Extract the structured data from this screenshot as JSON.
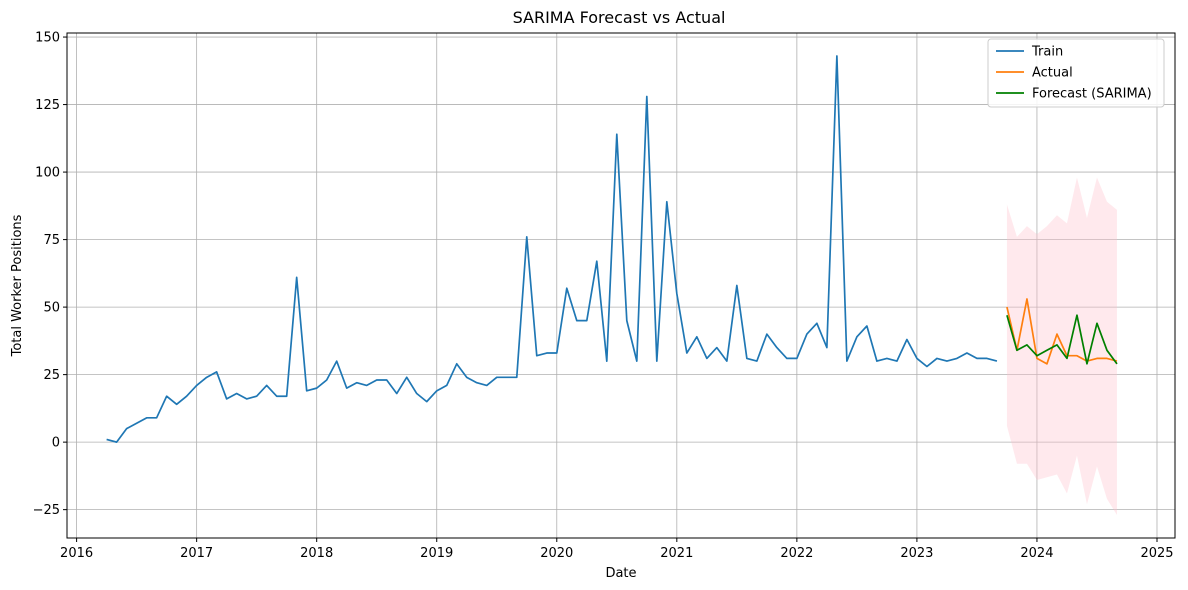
{
  "chart_data": {
    "type": "line",
    "title": "SARIMA Forecast vs Actual",
    "xlabel": "Date",
    "ylabel": "Total Worker Positions",
    "xlim": [
      2015.92,
      2025.15
    ],
    "ylim": [
      -35.5,
      151.5
    ],
    "x_ticks": [
      2016,
      2017,
      2018,
      2019,
      2020,
      2021,
      2022,
      2023,
      2024,
      2025
    ],
    "y_ticks": [
      -25,
      0,
      25,
      50,
      75,
      100,
      125,
      150
    ],
    "grid": true,
    "legend_position": "top-right",
    "colors": {
      "train": "#1f77b4",
      "actual": "#ff7f0e",
      "forecast": "#008000",
      "confidence_band": "#ffc0cb"
    },
    "series": [
      {
        "name": "Train",
        "x": [
          "2016-04",
          "2016-05",
          "2016-06",
          "2016-07",
          "2016-08",
          "2016-09",
          "2016-10",
          "2016-11",
          "2016-12",
          "2017-01",
          "2017-02",
          "2017-03",
          "2017-04",
          "2017-05",
          "2017-06",
          "2017-07",
          "2017-08",
          "2017-09",
          "2017-10",
          "2017-11",
          "2017-12",
          "2018-01",
          "2018-02",
          "2018-03",
          "2018-04",
          "2018-05",
          "2018-06",
          "2018-07",
          "2018-08",
          "2018-09",
          "2018-10",
          "2018-11",
          "2018-12",
          "2019-01",
          "2019-02",
          "2019-03",
          "2019-04",
          "2019-05",
          "2019-06",
          "2019-07",
          "2019-08",
          "2019-09",
          "2019-10",
          "2019-11",
          "2019-12",
          "2020-01",
          "2020-02",
          "2020-03",
          "2020-04",
          "2020-05",
          "2020-06",
          "2020-07",
          "2020-08",
          "2020-09",
          "2020-10",
          "2020-11",
          "2020-12",
          "2021-01",
          "2021-02",
          "2021-03",
          "2021-04",
          "2021-05",
          "2021-06",
          "2021-07",
          "2021-08",
          "2021-09",
          "2021-10",
          "2021-11",
          "2021-12",
          "2022-01",
          "2022-02",
          "2022-03",
          "2022-04",
          "2022-05",
          "2022-06",
          "2022-07",
          "2022-08",
          "2022-09",
          "2022-10",
          "2022-11",
          "2022-12",
          "2023-01",
          "2023-02",
          "2023-03",
          "2023-04",
          "2023-05",
          "2023-06",
          "2023-07",
          "2023-08",
          "2023-09"
        ],
        "values": [
          1,
          0,
          5,
          7,
          9,
          9,
          17,
          14,
          17,
          21,
          24,
          26,
          16,
          18,
          16,
          17,
          21,
          17,
          17,
          61,
          19,
          20,
          23,
          30,
          20,
          22,
          21,
          23,
          23,
          18,
          24,
          18,
          15,
          19,
          21,
          29,
          24,
          22,
          21,
          24,
          24,
          24,
          76,
          32,
          33,
          33,
          57,
          45,
          45,
          67,
          30,
          114,
          45,
          30,
          128,
          30,
          89,
          55,
          33,
          39,
          31,
          35,
          30,
          58,
          31,
          30,
          40,
          35,
          31,
          31,
          40,
          44,
          35,
          143,
          30,
          39,
          43,
          30,
          31,
          30,
          38,
          31,
          28,
          31,
          30,
          31,
          33,
          31,
          31,
          30
        ]
      },
      {
        "name": "Actual",
        "x": [
          "2023-10",
          "2023-11",
          "2023-12",
          "2024-01",
          "2024-02",
          "2024-03",
          "2024-04",
          "2024-05",
          "2024-06",
          "2024-07",
          "2024-08",
          "2024-09"
        ],
        "values": [
          50,
          34,
          53,
          31,
          29,
          40,
          32,
          32,
          30,
          31,
          31,
          30
        ]
      },
      {
        "name": "Forecast (SARIMA)",
        "x": [
          "2023-10",
          "2023-11",
          "2023-12",
          "2024-01",
          "2024-02",
          "2024-03",
          "2024-04",
          "2024-05",
          "2024-06",
          "2024-07",
          "2024-08",
          "2024-09"
        ],
        "values": [
          47,
          34,
          36,
          32,
          34,
          36,
          31,
          47,
          29,
          44,
          34,
          29
        ],
        "lower": [
          6,
          -8,
          -8,
          -14,
          -13,
          -12,
          -19,
          -5,
          -23,
          -9,
          -21,
          -27
        ],
        "upper": [
          88,
          76,
          80,
          77,
          80,
          84,
          81,
          98,
          83,
          98,
          89,
          86
        ]
      }
    ]
  }
}
